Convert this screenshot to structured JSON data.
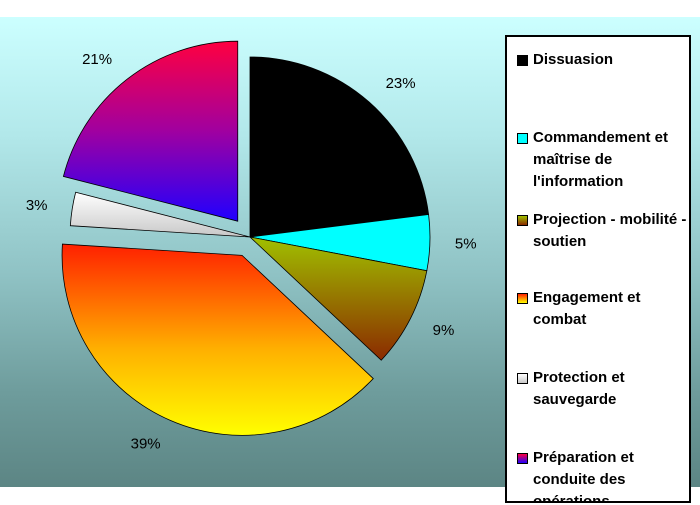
{
  "chart_data": {
    "type": "pie",
    "title": "",
    "slices": [
      {
        "label": "Dissuasion",
        "value": 23,
        "pct_label": "23%",
        "color": "#000000"
      },
      {
        "label": "Commandement et maîtrise de l'information",
        "value": 5,
        "pct_label": "5%",
        "color": "#00ffff"
      },
      {
        "label": "Projection - mobilité - soutien",
        "value": 9,
        "pct_label": "9%",
        "color": "#7f8000"
      },
      {
        "label": "Engagement et combat",
        "value": 39,
        "pct_label": "39%",
        "color": "#ff4000"
      },
      {
        "label": "Protection et sauvegarde",
        "value": 3,
        "pct_label": "3%",
        "color": "#e6e6e6"
      },
      {
        "label": "Préparation et conduite des opérations",
        "value": 21,
        "pct_label": "21%",
        "color": "#8000c0"
      }
    ],
    "legend_position": "right"
  }
}
